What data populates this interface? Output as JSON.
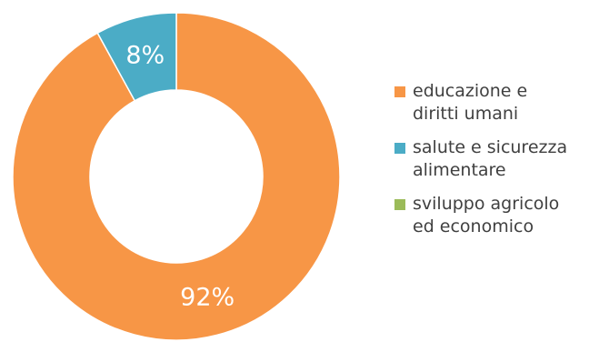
{
  "chart_data": {
    "type": "pie",
    "donut": true,
    "title": "",
    "categories": [
      "educazione e\ndiritti umani",
      "salute e sicurezza\nalimentare",
      "sviluppo agricolo\ned economico"
    ],
    "values": [
      92,
      8,
      0
    ],
    "data_labels": [
      "92%",
      "8%",
      ""
    ],
    "colors": [
      "#F79646",
      "#4BACC6",
      "#9BBB59"
    ],
    "legend_position": "right"
  }
}
